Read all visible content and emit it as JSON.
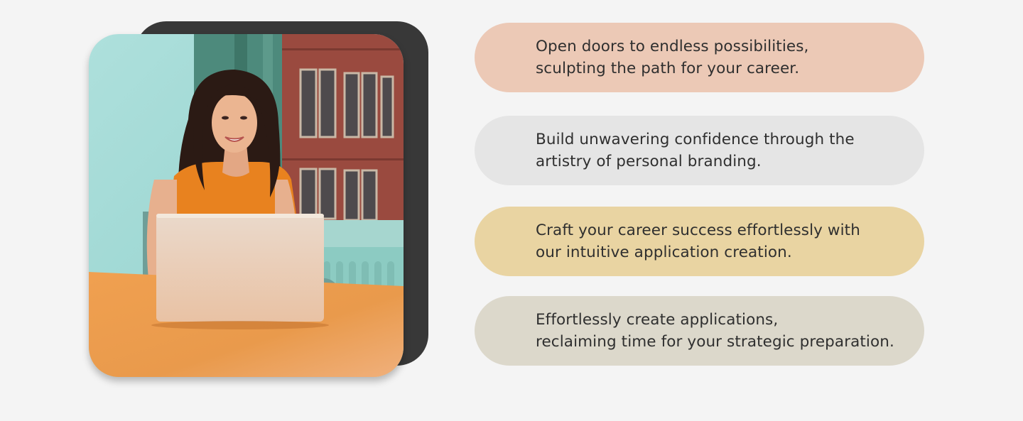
{
  "hero_image": {
    "subject": "woman in orange top smiling while working on a laptop at a wooden desk"
  },
  "features": [
    {
      "line1": "Open doors to endless possibilities,",
      "line2": "sculpting the path for your career.",
      "color": "#ecc9b6"
    },
    {
      "line1": "Build unwavering confidence through the",
      "line2": "artistry of personal branding.",
      "color": "#e5e5e5"
    },
    {
      "line1": "Craft your career success effortlessly with",
      "line2": "our intuitive application creation.",
      "color": "#e9d4a2"
    },
    {
      "line1": "Effortlessly create applications,",
      "line2": "reclaiming time for your strategic preparation.",
      "color": "#dcd8cb"
    }
  ]
}
